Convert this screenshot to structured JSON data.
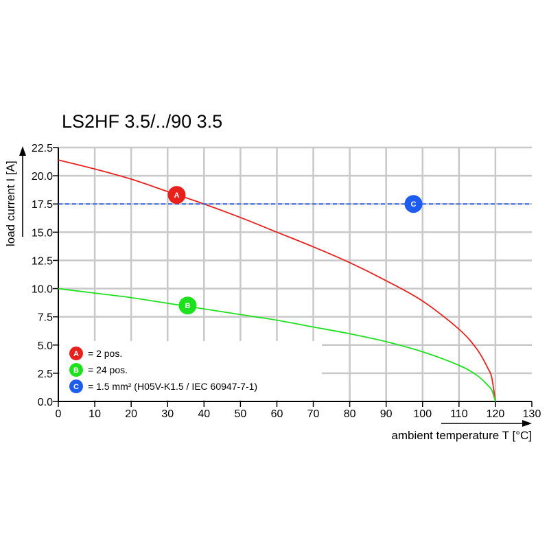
{
  "chart_data": {
    "type": "line",
    "title": "LS2HF 3.5/../90 3.5",
    "xlabel": "ambient temperature T [°C]",
    "ylabel": "load current I [A]",
    "xlim": [
      0,
      130
    ],
    "ylim": [
      0,
      22.5
    ],
    "x_ticks": [
      "0",
      "10",
      "20",
      "30",
      "40",
      "50",
      "60",
      "70",
      "80",
      "90",
      "100",
      "110",
      "120",
      "130"
    ],
    "y_ticks": [
      "0.0",
      "2.5",
      "5.0",
      "7.5",
      "10.0",
      "12.5",
      "15.0",
      "17.5",
      "20.0",
      "22.5"
    ],
    "grid": true,
    "legend_position": "bottom-left",
    "series": [
      {
        "id": "A",
        "legend": "= 2 pos.",
        "color": "#e8211d",
        "style": "solid",
        "x": [
          0,
          10,
          20,
          30,
          40,
          50,
          60,
          70,
          80,
          90,
          100,
          110,
          115,
          118,
          119,
          120
        ],
        "y": [
          21.4,
          20.6,
          19.7,
          18.6,
          17.5,
          16.3,
          15.0,
          13.7,
          12.3,
          10.7,
          8.9,
          6.4,
          4.6,
          2.9,
          2.1,
          0.0
        ],
        "marker_at": [
          32.5,
          18.3
        ]
      },
      {
        "id": "B",
        "legend": "= 24 pos.",
        "color": "#1ee11e",
        "style": "solid",
        "x": [
          0,
          10,
          20,
          30,
          40,
          50,
          60,
          70,
          80,
          90,
          100,
          110,
          115,
          118,
          119,
          120
        ],
        "y": [
          10.0,
          9.6,
          9.2,
          8.7,
          8.2,
          7.7,
          7.2,
          6.6,
          6.0,
          5.3,
          4.4,
          3.2,
          2.3,
          1.4,
          1.0,
          0.0
        ],
        "marker_at": [
          35.5,
          8.5
        ]
      },
      {
        "id": "C",
        "legend": "= 1.5 mm² (H05V-K1.5 / IEC 60947-7-1)",
        "color": "#1e5cf0",
        "style": "dashed",
        "x": [
          0,
          130
        ],
        "y": [
          17.5,
          17.5
        ],
        "marker_at": [
          97.5,
          17.5
        ]
      }
    ]
  }
}
